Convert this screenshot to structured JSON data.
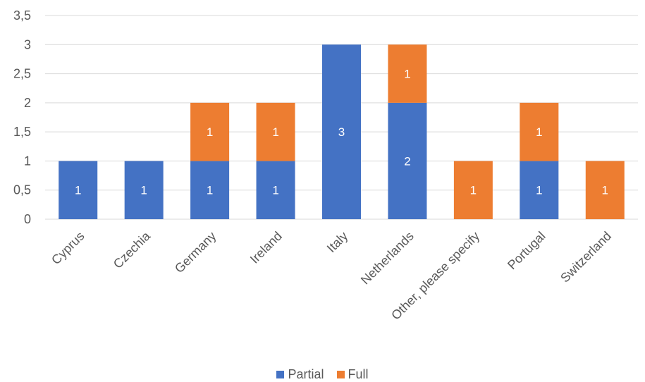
{
  "chart_data": {
    "type": "bar",
    "stacked": true,
    "categories": [
      "Cyprus",
      "Czechia",
      "Germany",
      "Ireland",
      "Italy",
      "Netherlands",
      "Other, please specify",
      "Portugal",
      "Switzerland"
    ],
    "series": [
      {
        "name": "Partial",
        "color": "#4472C4",
        "values": [
          1,
          1,
          1,
          1,
          3,
          2,
          0,
          1,
          0
        ]
      },
      {
        "name": "Full",
        "color": "#ED7D31",
        "values": [
          0,
          0,
          1,
          1,
          0,
          1,
          1,
          1,
          1
        ]
      }
    ],
    "y_ticks": [
      "0",
      "0,5",
      "1",
      "1,5",
      "2",
      "2,5",
      "3",
      "3,5"
    ],
    "ylim": [
      0,
      3.5
    ],
    "grid": true,
    "legend_position": "bottom",
    "data_labels": true
  }
}
